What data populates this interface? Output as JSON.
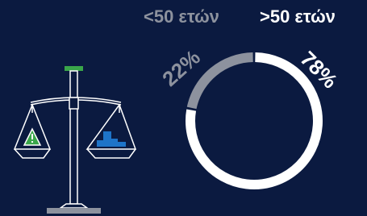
{
  "chart_data": {
    "type": "donut",
    "categories": [
      "<50 ετών",
      ">50 ετών"
    ],
    "values": [
      22,
      78
    ],
    "value_labels": [
      "22%",
      "78%"
    ],
    "colors": [
      "#8d929e",
      "#ffffff"
    ]
  }
}
